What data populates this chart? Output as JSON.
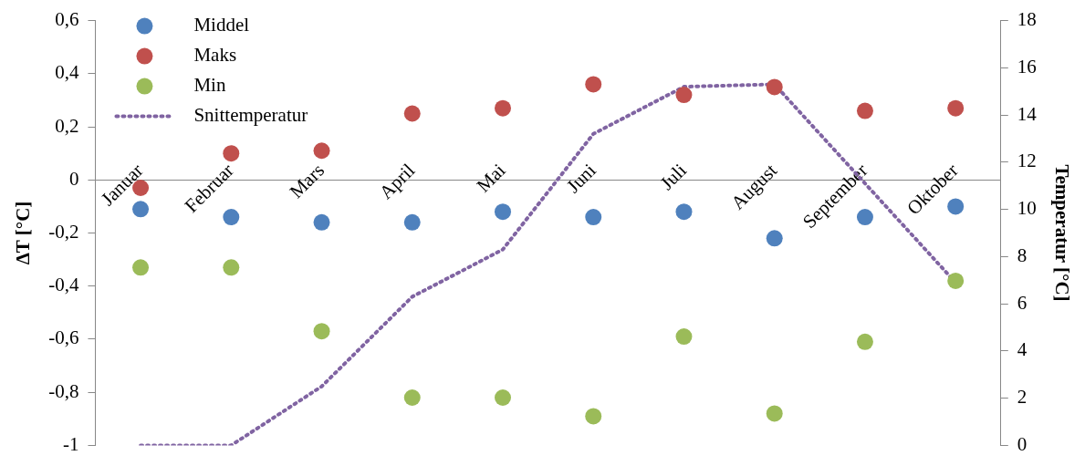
{
  "chart_data": {
    "type": "scatter",
    "xlabel": null,
    "ylabel": "ΔT [°C]",
    "y2label": "Temperatur [°C]",
    "categories": [
      "Januar",
      "Februar",
      "Mars",
      "April",
      "Mai",
      "Juni",
      "Juli",
      "August",
      "September",
      "Oktober"
    ],
    "series": [
      {
        "name": "Middel",
        "color": "#4f81bd",
        "values": [
          -0.11,
          -0.14,
          -0.16,
          -0.16,
          -0.12,
          -0.14,
          -0.12,
          -0.22,
          -0.14,
          -0.1
        ]
      },
      {
        "name": "Maks",
        "color": "#c0504d",
        "values": [
          -0.03,
          0.1,
          0.11,
          0.25,
          0.27,
          0.36,
          0.32,
          0.35,
          0.26,
          0.27
        ]
      },
      {
        "name": "Min",
        "color": "#9bbb59",
        "values": [
          -0.33,
          -0.33,
          -0.57,
          -0.82,
          -0.82,
          -0.89,
          -0.59,
          -0.88,
          -0.61,
          -0.38
        ]
      },
      {
        "name": "Snittemperatur",
        "type": "line",
        "axis": "y2",
        "color": "#8064a2",
        "line_style": "dotted",
        "marker": "none",
        "values": [
          0,
          0,
          2.5,
          6.3,
          8.3,
          13.2,
          15.2,
          15.3,
          11.1,
          6.9
        ]
      }
    ],
    "ylim": [
      -1,
      0.6
    ],
    "yticks": [
      {
        "value": -1,
        "label": "-1"
      },
      {
        "value": -0.8,
        "label": "-0,8"
      },
      {
        "value": -0.6,
        "label": "-0,6"
      },
      {
        "value": -0.4,
        "label": "-0,4"
      },
      {
        "value": -0.2,
        "label": "-0,2"
      },
      0,
      {
        "value": 0.2,
        "label": "0,2"
      },
      {
        "value": 0.4,
        "label": "0,4"
      },
      {
        "value": 0.6,
        "label": "0,6"
      }
    ],
    "y2lim": [
      0,
      18
    ],
    "y2ticks": [
      0,
      2,
      4,
      6,
      8,
      10,
      12,
      14,
      16,
      18
    ],
    "marker": "circle",
    "grid": false,
    "legend": "top left"
  }
}
